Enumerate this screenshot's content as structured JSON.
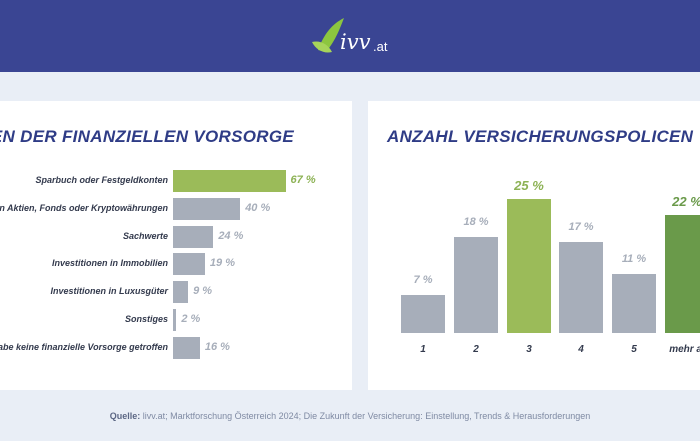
{
  "brand": {
    "name": "ivv",
    "suffix": ".at",
    "header_color": "#3a4593",
    "logo_leaf_color": "#8cc63f"
  },
  "colors": {
    "highlight_bar": "#9bbb59",
    "highlight_dark": "#6a9a4a",
    "grey_bar": "#a7aeba",
    "highlight_text": "#8db255",
    "grey_text": "#a7aeba"
  },
  "chart_data": [
    {
      "type": "bar",
      "orientation": "horizontal",
      "title": "MEN DER FINANZIELLEN VORSORGE",
      "categories": [
        "Sparbuch oder Festgeldkonten",
        "in Aktien, Fonds oder Kryptowährungen",
        "Sachwerte",
        "Investitionen in Immobilien",
        "Investitionen in Luxusgüter",
        "Sonstiges",
        "abe keine finanzielle Vorsorge getroffen"
      ],
      "values": [
        67,
        40,
        24,
        19,
        9,
        2,
        16
      ],
      "value_labels": [
        "67 %",
        "40 %",
        "24 %",
        "19 %",
        "9 %",
        "2 %",
        "16 %"
      ],
      "highlight_index": 0,
      "xlim": [
        0,
        100
      ]
    },
    {
      "type": "bar",
      "orientation": "vertical",
      "title": "ANZAHL VERSICHERUNGSPOLICEN",
      "categories": [
        "1",
        "2",
        "3",
        "4",
        "5",
        "mehr al"
      ],
      "values": [
        7,
        18,
        25,
        17,
        11,
        22
      ],
      "value_labels": [
        "7 %",
        "18 %",
        "25 %",
        "17 %",
        "11 %",
        "22 %"
      ],
      "highlight_indices": [
        2,
        5
      ],
      "ylim": [
        0,
        25
      ]
    }
  ],
  "source": {
    "label": "Quelle:",
    "text": "livv.at; Marktforschung Österreich 2024; Die Zukunft der Versicherung: Einstellung, Trends & Herausforderungen"
  }
}
